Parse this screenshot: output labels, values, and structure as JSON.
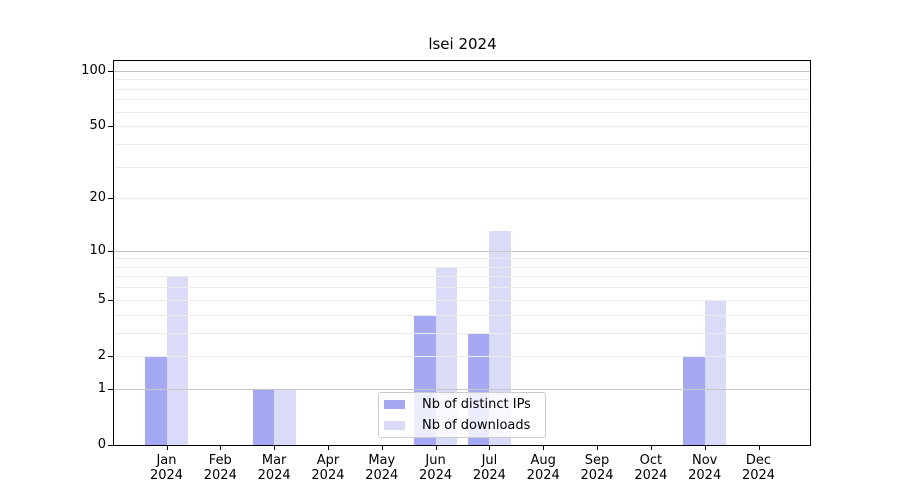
{
  "title": "lsei 2024",
  "legend": {
    "items": [
      {
        "label": "Nb of distinct IPs",
        "color": "#a5a8f3"
      },
      {
        "label": "Nb of downloads",
        "color": "#dadbf8"
      }
    ],
    "position": "lower center"
  },
  "chart_data": {
    "type": "bar",
    "title": "lsei 2024",
    "categories": [
      "Jan 2024",
      "Feb 2024",
      "Mar 2024",
      "Apr 2024",
      "May 2024",
      "Jun 2024",
      "Jul 2024",
      "Aug 2024",
      "Sep 2024",
      "Oct 2024",
      "Nov 2024",
      "Dec 2024"
    ],
    "series": [
      {
        "name": "Nb of distinct IPs",
        "color": "#a5a8f3",
        "values": [
          2,
          0,
          1,
          0,
          0,
          4,
          3,
          0,
          0,
          0,
          2,
          0
        ]
      },
      {
        "name": "Nb of downloads",
        "color": "#dadbf8",
        "values": [
          7,
          0,
          1,
          0,
          0,
          8,
          13,
          0,
          0,
          0,
          5,
          0
        ]
      }
    ],
    "xlabel": "",
    "ylabel": "",
    "yscale": "log1p",
    "ylim": [
      0,
      113
    ],
    "y_ticks": [
      0,
      1,
      2,
      5,
      10,
      20,
      50,
      100
    ],
    "grid": true,
    "grid_major": [
      1,
      10,
      100
    ],
    "grid_minor": [
      2,
      3,
      4,
      5,
      6,
      7,
      8,
      9,
      20,
      30,
      40,
      50,
      60,
      70,
      80,
      90
    ],
    "colors": {
      "grid_major": "#c6c6c6",
      "grid_minor": "#ececec",
      "axis": "#000000",
      "tick_label": "#000000"
    },
    "legend_position": "lower center"
  }
}
